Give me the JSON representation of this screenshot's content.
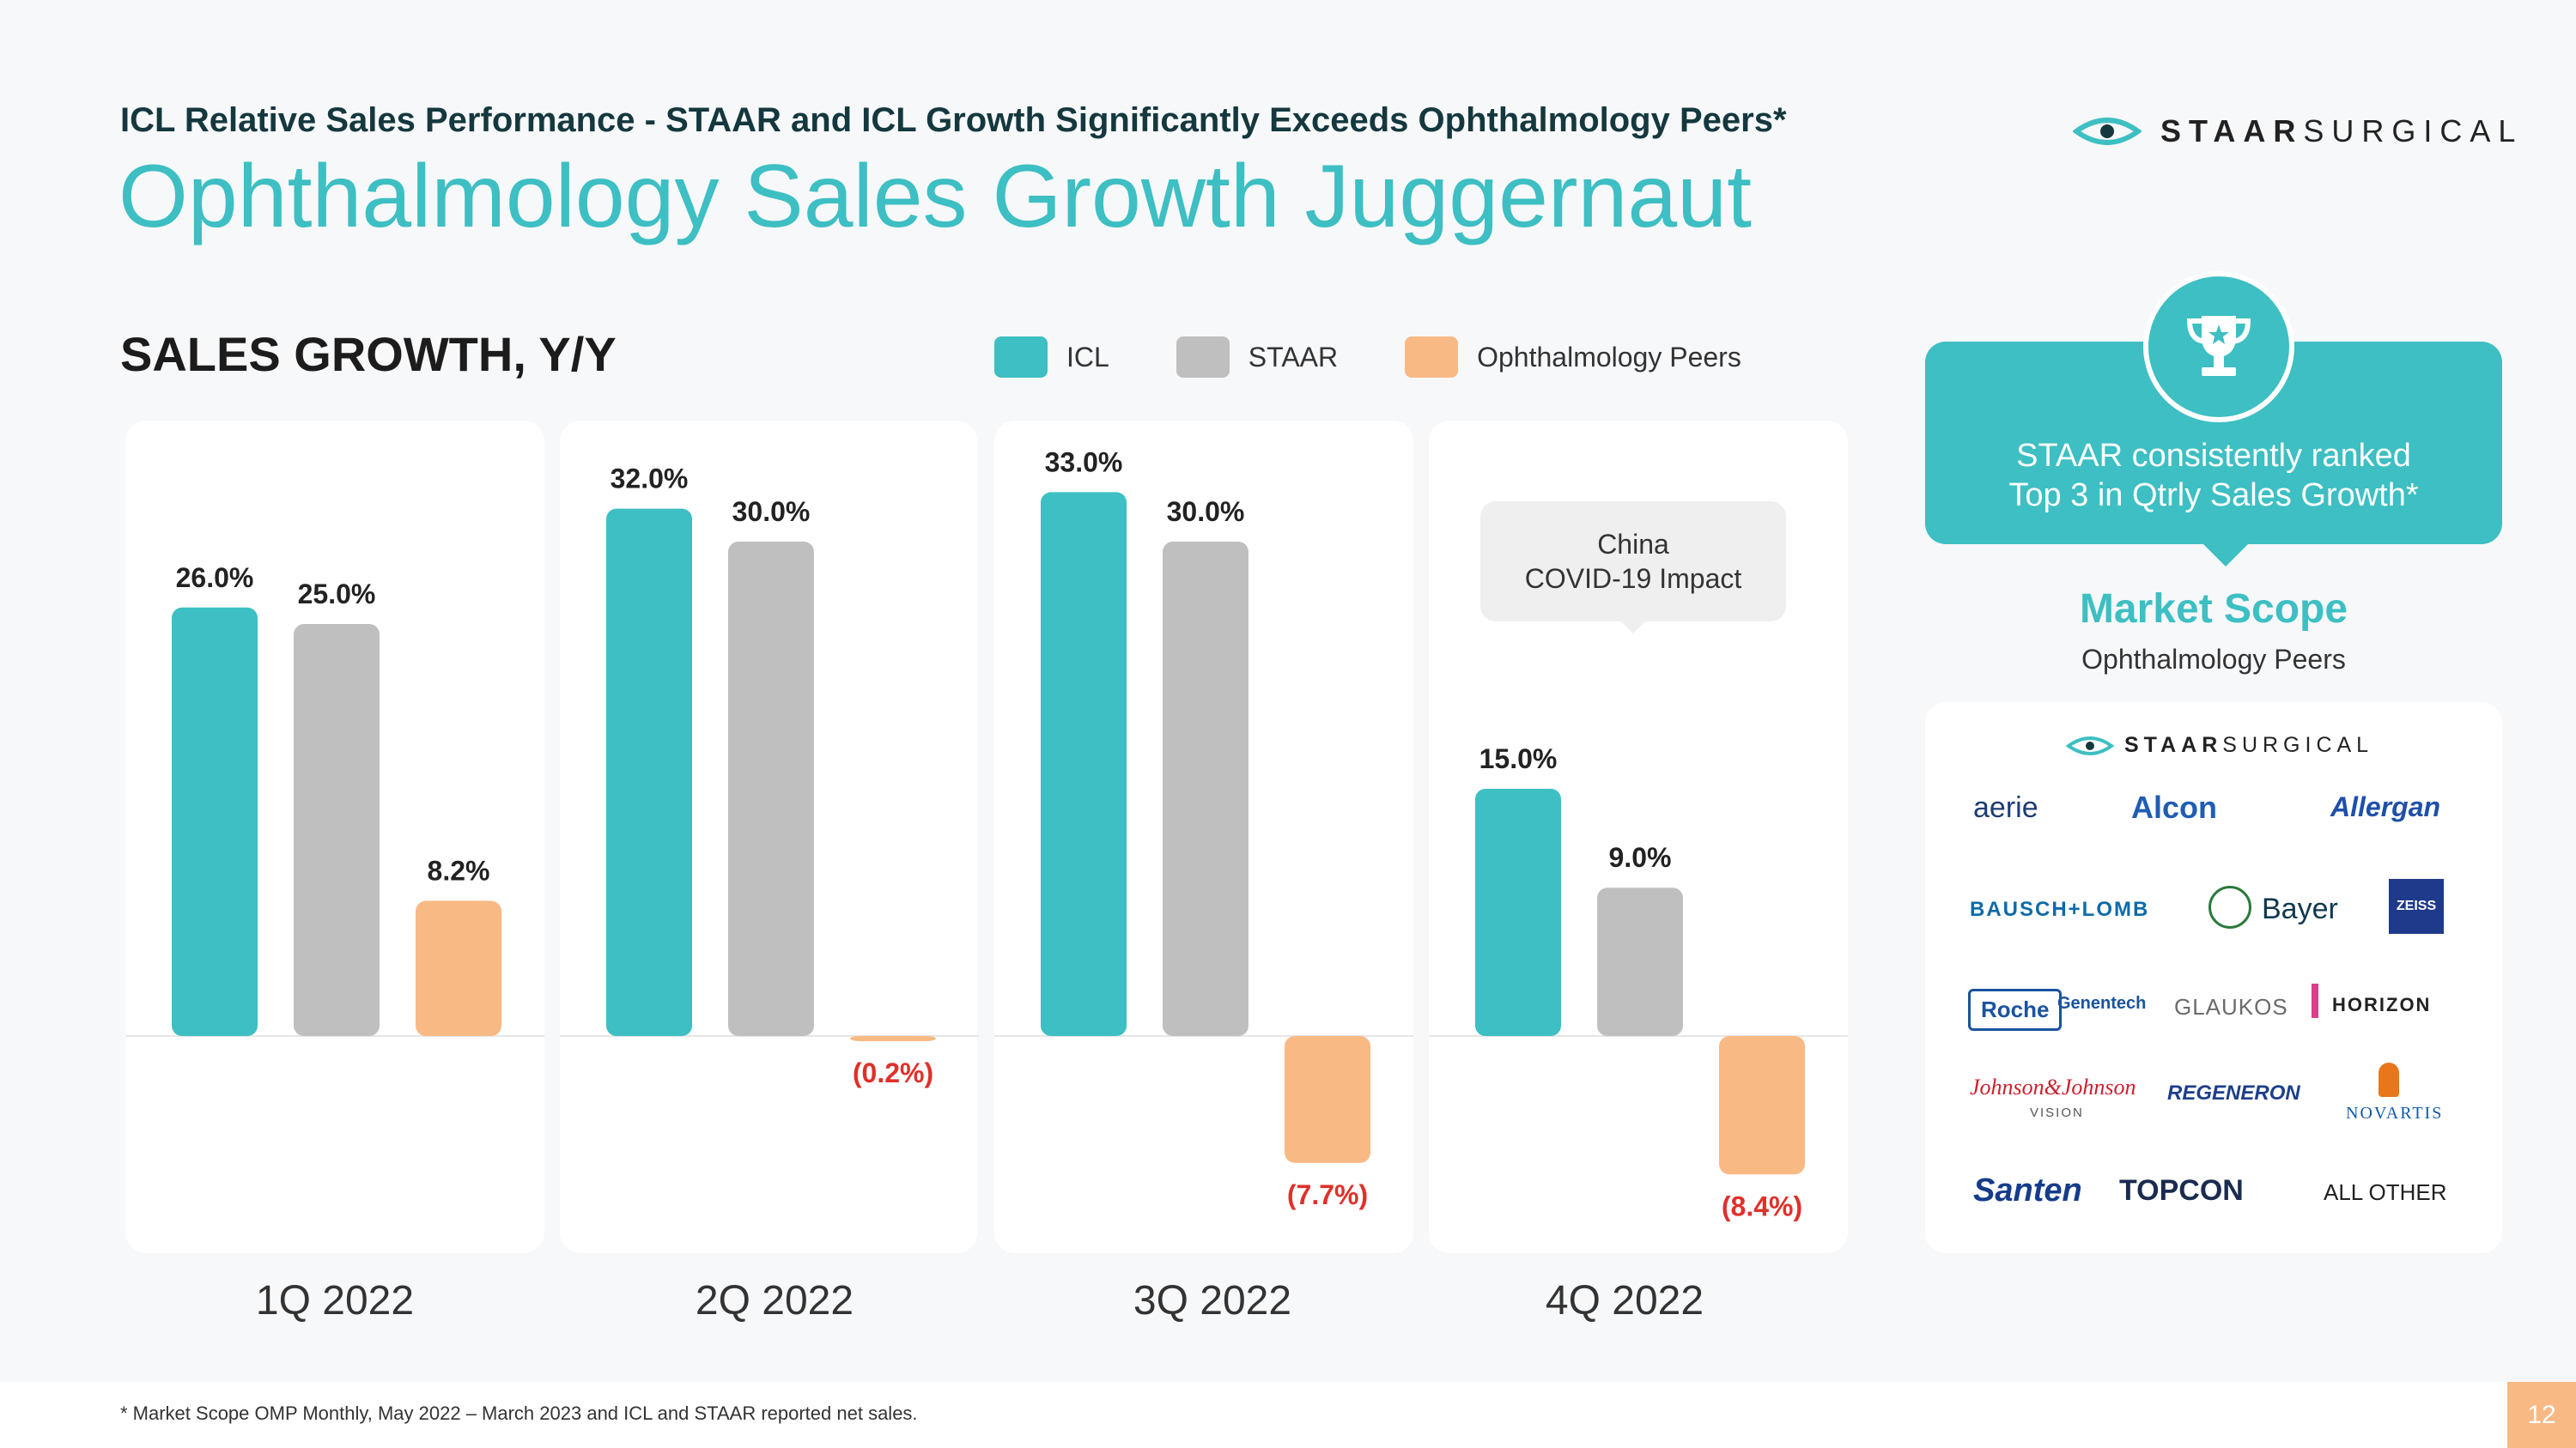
{
  "header": {
    "kicker": "ICL Relative Sales Performance - STAAR and ICL Growth Significantly Exceeds Ophthalmology Peers*",
    "title": "Ophthalmology Sales Growth Juggernaut",
    "logo_bold": "STAAR",
    "logo_rest": "SURGICAL"
  },
  "section_label": "SALES GROWTH, Y/Y",
  "callout": {
    "line1": "China",
    "line2": "COVID-19 Impact"
  },
  "colors": {
    "icl": "#3dbfc3",
    "staar": "#bfbfbf",
    "peers": "#f9b985",
    "negative_label": "#e0302a",
    "accent": "#3dbfc3"
  },
  "chart_data": {
    "type": "bar",
    "categories": [
      "1Q 2022",
      "2Q 2022",
      "3Q 2022",
      "4Q 2022"
    ],
    "series": [
      {
        "name": "ICL",
        "values": [
          26.0,
          32.0,
          33.0,
          15.0
        ],
        "labels": [
          "26.0%",
          "32.0%",
          "33.0%",
          "15.0%"
        ]
      },
      {
        "name": "STAAR",
        "values": [
          25.0,
          30.0,
          30.0,
          9.0
        ],
        "labels": [
          "25.0%",
          "30.0%",
          "30.0%",
          "9.0%"
        ]
      },
      {
        "name": "Ophthalmology Peers",
        "values": [
          8.2,
          -0.2,
          -7.7,
          -8.4
        ],
        "labels": [
          "8.2%",
          "(0.2%)",
          "(7.7%)",
          "(8.4%)"
        ]
      }
    ],
    "ylim": [
      -13,
      37
    ],
    "legend_position": "top-right",
    "grid": false
  },
  "sidebar": {
    "card_line1": "STAAR consistently ranked",
    "card_line2": "Top 3 in Qtrly Sales Growth*",
    "market_scope_title": "Market Scope",
    "market_scope_sub": "Ophthalmology Peers",
    "logo_bold": "STAAR",
    "logo_rest": "SURGICAL",
    "peers": [
      "aerie",
      "Alcon",
      "Allergan",
      "BAUSCH+LOMB",
      "Bayer",
      "ZEISS",
      "Roche",
      "Genentech",
      "GLAUKOS",
      "HORIZON",
      "Johnson&Johnson",
      "VISION",
      "REGENERON",
      "NOVARTIS",
      "Santen",
      "TOPCON",
      "ALL OTHER"
    ]
  },
  "footer": {
    "footnote": "* Market Scope OMP Monthly, May 2022 – March 2023 and ICL and STAAR reported net sales.",
    "page_number": "12"
  }
}
